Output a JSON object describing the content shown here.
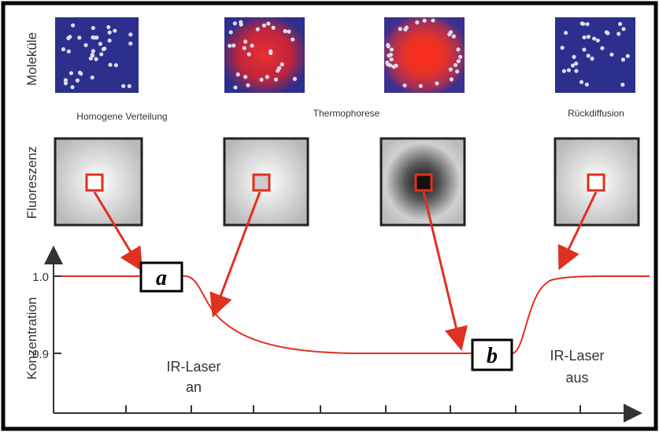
{
  "row_labels": {
    "molecules": "Moleküle",
    "fluorescence": "Fluoreszenz",
    "concentration": "Konzentration"
  },
  "captions": [
    "Homogene Verteilung",
    "Thermophorese",
    "Rückdiffusion"
  ],
  "y_ticks": [
    "1.0",
    "0.9"
  ],
  "markers": [
    "a",
    "b"
  ],
  "laser_on": [
    "IR-Laser",
    "an"
  ],
  "laser_off": [
    "IR-Laser",
    "aus"
  ]
}
